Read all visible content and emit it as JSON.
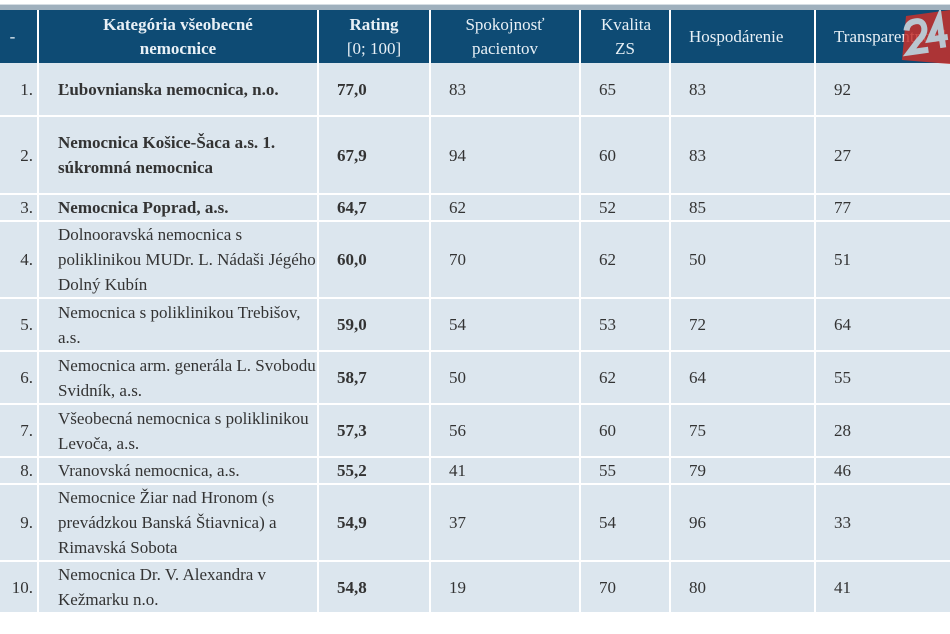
{
  "headers": {
    "rank": "-",
    "category": "Kategória všeobecné nemocnice",
    "rating_title": "Rating",
    "rating_range": "[0; 100]",
    "satisfaction": "Spokojnosť pacientov",
    "quality": "Kvalita ZS",
    "economy": "Hospodárenie",
    "transparency": "Transparentnosť"
  },
  "logo_text": "24",
  "colors": {
    "header_bg": "#0e4b74",
    "row_bg": "#dce6ee",
    "logo": "#c8302b"
  },
  "rows": [
    {
      "rank": "1.",
      "name": "Ľubovnianska nemocnica, n.o.",
      "bold": true,
      "rating": "77,0",
      "satisfaction": "83",
      "quality": "65",
      "economy": "83",
      "transparency": "92"
    },
    {
      "rank": "2.",
      "name": "Nemocnica Košice-Šaca a.s. 1. súkromná nemocnica",
      "bold": true,
      "rating": "67,9",
      "satisfaction": "94",
      "quality": "60",
      "economy": "83",
      "transparency": "27"
    },
    {
      "rank": "3.",
      "name": "Nemocnica Poprad, a.s.",
      "bold": true,
      "rating": "64,7",
      "satisfaction": "62",
      "quality": "52",
      "economy": "85",
      "transparency": "77"
    },
    {
      "rank": "4.",
      "name": "Dolnooravská nemocnica s poliklinikou MUDr. L. Nádaši Jégého Dolný Kubín",
      "bold": false,
      "rating": "60,0",
      "satisfaction": "70",
      "quality": "62",
      "economy": "50",
      "transparency": "51"
    },
    {
      "rank": "5.",
      "name": "Nemocnica s poliklinikou Trebišov, a.s.",
      "bold": false,
      "rating": "59,0",
      "satisfaction": "54",
      "quality": "53",
      "economy": "72",
      "transparency": "64"
    },
    {
      "rank": "6.",
      "name": "Nemocnica arm. generála L. Svobodu Svidník, a.s.",
      "bold": false,
      "rating": "58,7",
      "satisfaction": "50",
      "quality": "62",
      "economy": "64",
      "transparency": "55"
    },
    {
      "rank": "7.",
      "name": "Všeobecná nemocnica s poliklinikou Levoča, a.s.",
      "bold": false,
      "rating": "57,3",
      "satisfaction": "56",
      "quality": "60",
      "economy": "75",
      "transparency": "28"
    },
    {
      "rank": "8.",
      "name": "Vranovská nemocnica, a.s.",
      "bold": false,
      "rating": "55,2",
      "satisfaction": "41",
      "quality": "55",
      "economy": "79",
      "transparency": "46"
    },
    {
      "rank": "9.",
      "name": "Nemocnice Žiar nad Hronom (s prevádzkou Banská Štiavnica) a Rimavská Sobota",
      "bold": false,
      "rating": "54,9",
      "satisfaction": "37",
      "quality": "54",
      "economy": "96",
      "transparency": "33"
    },
    {
      "rank": "10.",
      "name": "Nemocnica Dr. V. Alexandra v Kežmarku n.o.",
      "bold": false,
      "rating": "54,8",
      "satisfaction": "19",
      "quality": "70",
      "economy": "80",
      "transparency": "41"
    }
  ]
}
